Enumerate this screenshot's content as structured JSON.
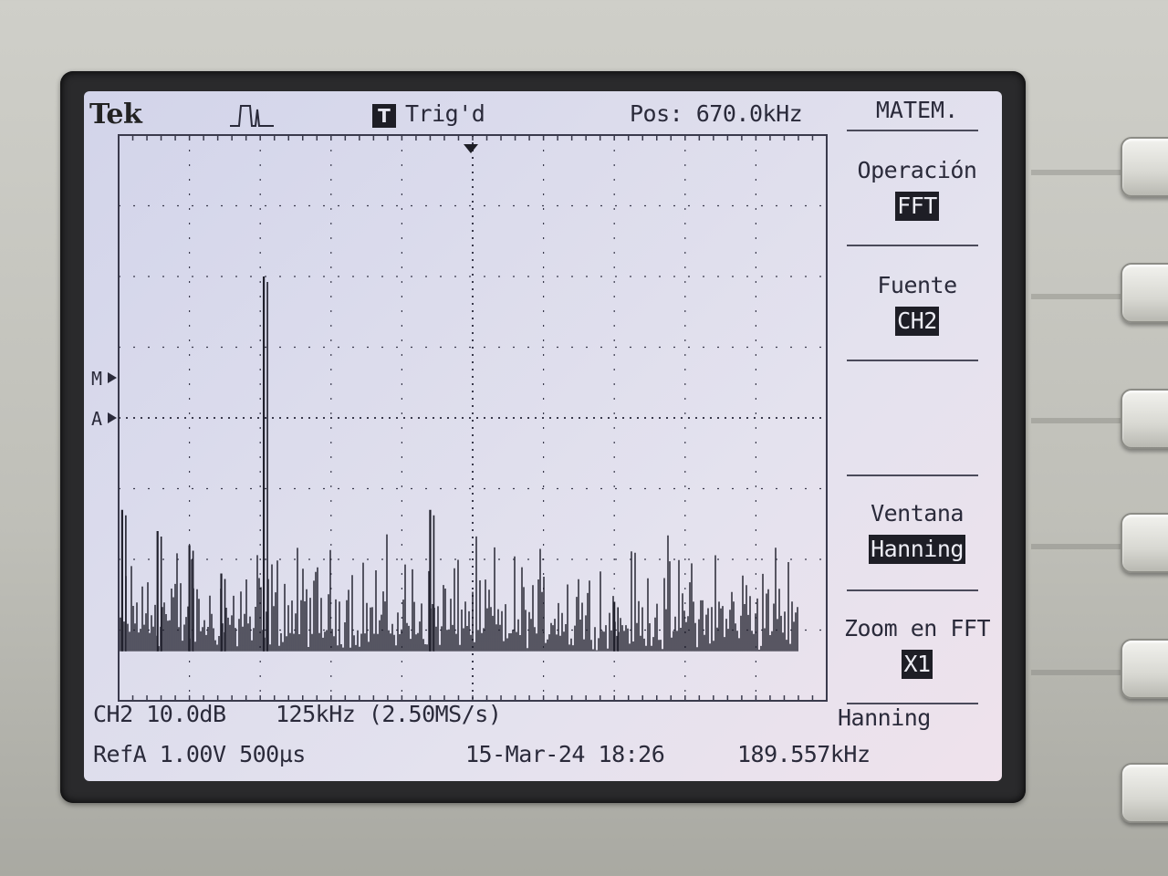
{
  "header": {
    "brand": "Tek",
    "trigger_badge": "T",
    "trigger_status": "Trig'd",
    "position": "Pos: 670.0kHz"
  },
  "menu": {
    "title": "MATEM.",
    "items": [
      {
        "label": "Operación",
        "value": "FFT"
      },
      {
        "label": "Fuente",
        "value": "CH2"
      },
      {
        "label": "",
        "value": ""
      },
      {
        "label": "Ventana",
        "value": "Hanning"
      },
      {
        "label": "Zoom en FFT",
        "value": "X1"
      }
    ]
  },
  "status": {
    "ch2_scale": "CH2 10.0dB",
    "fft_span": "125kHz (2.50MS/s)",
    "window": "Hanning",
    "refa": "RefA 1.00V 500µs",
    "datetime": "15-Mar-24 18:26",
    "frequency": "189.557kHz"
  },
  "markers": {
    "math_marker": "M",
    "ref_marker": "A"
  },
  "colors": {
    "trace": "#20202c",
    "grid": "#3a3a4c",
    "screen_bg": "#dcdcec",
    "highlight_bg": "#1e1e26"
  },
  "chart_data": {
    "type": "line",
    "title": "",
    "xlabel": "",
    "ylabel": "",
    "grid": true,
    "divisions_x": 10,
    "divisions_y": 8,
    "volts_per_div_label": "10.0dB",
    "freq_per_div_label": "125kHz",
    "peaks": [
      {
        "div_x": 0.05,
        "div_y": 2.7
      },
      {
        "div_x": 0.55,
        "div_y": 2.4
      },
      {
        "div_x": 1.0,
        "div_y": 2.2
      },
      {
        "div_x": 1.45,
        "div_y": 1.8
      },
      {
        "div_x": 2.05,
        "div_y": 6.0
      },
      {
        "div_x": 4.4,
        "div_y": 2.7
      },
      {
        "div_x": 7.0,
        "div_y": 1.4
      }
    ]
  }
}
